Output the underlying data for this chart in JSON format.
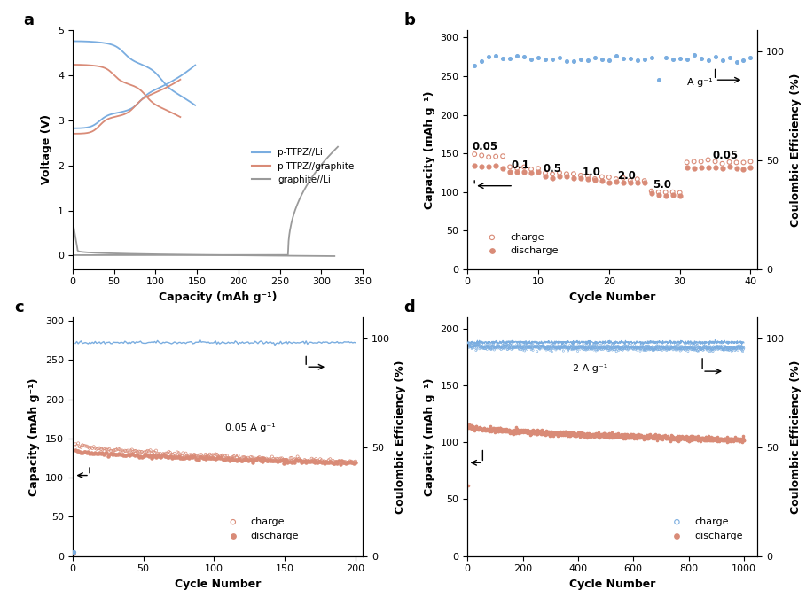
{
  "fig_width": 9.09,
  "fig_height": 6.75,
  "panel_label_fontsize": 13,
  "panel_label_fontweight": "bold",
  "panel_a": {
    "xlabel": "Capacity (mAh g⁻¹)",
    "ylabel": "Voltage (V)",
    "xlim": [
      0,
      350
    ],
    "ylim": [
      -0.3,
      5.0
    ],
    "xticks": [
      0,
      50,
      100,
      150,
      200,
      250,
      300,
      350
    ],
    "yticks": [
      0,
      1,
      2,
      3,
      4,
      5
    ],
    "legend_labels": [
      "p-TTPZ//Li",
      "p-TTPZ//graphite",
      "graphite//Li"
    ],
    "line_colors": [
      "#7aade0",
      "#d98b77",
      "#9a9a9a"
    ]
  },
  "panel_b": {
    "xlabel": "Cycle Number",
    "ylabel_left": "Capacity (mAh g⁻¹)",
    "ylabel_right": "Coulombic Efficiency (%)",
    "xlim": [
      0,
      41
    ],
    "ylim_left": [
      0,
      310
    ],
    "ylim_right": [
      0,
      110
    ],
    "xticks": [
      0,
      10,
      20,
      30,
      40
    ],
    "yticks_left": [
      0,
      50,
      100,
      150,
      200,
      250,
      300
    ],
    "yticks_right": [
      0,
      50,
      100
    ],
    "rate_labels": [
      "0.05",
      "0.1",
      "0.5",
      "1.0",
      "2.0",
      "5.0",
      "0.05"
    ],
    "charge_color": "#d98b77",
    "discharge_color": "#d98b77",
    "ce_color": "#7aade0"
  },
  "panel_c": {
    "xlabel": "Cycle Number",
    "ylabel_left": "Capacity (mAh g⁻¹)",
    "ylabel_right": "Coulombic Efficiency (%)",
    "xlim": [
      0,
      205
    ],
    "ylim_left": [
      0,
      305
    ],
    "ylim_right": [
      0,
      110
    ],
    "xticks": [
      0,
      50,
      100,
      150,
      200
    ],
    "yticks_left": [
      0,
      50,
      100,
      150,
      200,
      250,
      300
    ],
    "yticks_right": [
      0,
      50,
      100
    ],
    "annotation": "0.05 A g⁻¹",
    "charge_color": "#d98b77",
    "discharge_color": "#d98b77",
    "ce_color": "#7aade0"
  },
  "panel_d": {
    "xlabel": "Cycle Number",
    "ylabel_left": "Capacity (mAh g⁻¹)",
    "ylabel_right": "Coulombic Efficiency (%)",
    "xlim": [
      0,
      1050
    ],
    "ylim_left": [
      0,
      210
    ],
    "ylim_right": [
      0,
      110
    ],
    "xticks": [
      0,
      200,
      400,
      600,
      800,
      1000
    ],
    "yticks_left": [
      0,
      50,
      100,
      150,
      200
    ],
    "yticks_right": [
      0,
      50,
      100
    ],
    "annotation": "2 A g⁻¹",
    "charge_color": "#7aade0",
    "discharge_color": "#d98b77",
    "ce_color": "#7aade0"
  }
}
